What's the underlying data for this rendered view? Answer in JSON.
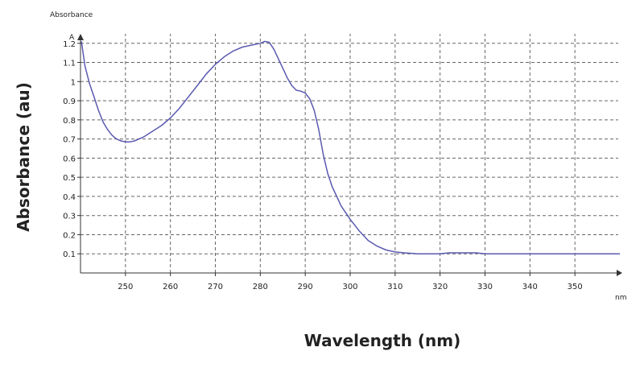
{
  "chart_data": {
    "type": "line",
    "title": "",
    "xlabel": "Wavelength (nm)",
    "ylabel": "Absorbance (au)",
    "inner_ylabel": "Absorbance",
    "y_axis_symbol": "A",
    "x_unit": "nm",
    "xlim": [
      240,
      360
    ],
    "ylim": [
      0.0,
      1.3
    ],
    "x_ticks": [
      250,
      260,
      270,
      280,
      290,
      300,
      310,
      320,
      330,
      340,
      350
    ],
    "y_ticks": [
      0.1,
      0.2,
      0.3,
      0.4,
      0.5,
      0.6,
      0.7,
      0.8,
      0.9,
      1,
      1.1,
      1.2
    ],
    "grid": true,
    "line_color": "#5a5ab0",
    "series": [
      {
        "x": [
          240.2,
          241,
          242,
          243,
          244,
          245,
          246,
          247,
          248,
          249,
          250,
          251,
          252,
          254,
          256,
          258,
          260,
          262,
          264,
          266,
          268,
          270,
          272,
          274,
          276,
          278,
          280,
          281,
          282,
          283,
          284,
          285,
          286,
          287,
          288,
          289,
          290,
          291,
          292,
          293,
          294,
          295,
          296,
          297,
          298,
          300,
          302,
          304,
          306,
          308,
          310,
          312,
          315,
          318,
          320,
          322,
          325,
          328,
          330,
          335,
          340,
          345,
          350,
          355,
          360
        ],
        "y": [
          1.21,
          1.08,
          0.99,
          0.92,
          0.85,
          0.79,
          0.75,
          0.72,
          0.7,
          0.69,
          0.685,
          0.685,
          0.69,
          0.71,
          0.74,
          0.77,
          0.81,
          0.86,
          0.92,
          0.98,
          1.04,
          1.09,
          1.13,
          1.16,
          1.18,
          1.19,
          1.2,
          1.21,
          1.205,
          1.17,
          1.12,
          1.07,
          1.02,
          0.98,
          0.955,
          0.95,
          0.94,
          0.91,
          0.85,
          0.75,
          0.62,
          0.52,
          0.45,
          0.4,
          0.35,
          0.28,
          0.22,
          0.17,
          0.14,
          0.12,
          0.11,
          0.105,
          0.1,
          0.1,
          0.1,
          0.105,
          0.105,
          0.105,
          0.1,
          0.1,
          0.1,
          0.1,
          0.1,
          0.1,
          0.1
        ]
      }
    ]
  }
}
